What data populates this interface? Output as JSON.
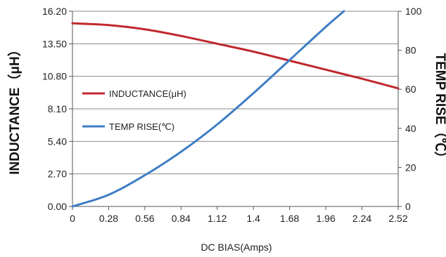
{
  "chart_data": {
    "type": "line",
    "xlabel": "DC BIAS(Amps)",
    "ylabel_left": "INDUCTANCE（μH）",
    "ylabel_right": "TEMP RISE（℃）",
    "x_ticks": [
      "0",
      "0.28",
      "0.56",
      "0.84",
      "1.12",
      "1.4",
      "1.68",
      "1.96",
      "2.24",
      "2.52"
    ],
    "y_left_ticks": [
      "0.00",
      "2.70",
      "5.40",
      "8.10",
      "10.80",
      "13.50",
      "16.20"
    ],
    "y_right_ticks": [
      "0",
      "20",
      "40",
      "60",
      "80",
      "100"
    ],
    "xlim": [
      0,
      2.52
    ],
    "ylim_left": [
      0,
      16.2
    ],
    "ylim_right": [
      0,
      100
    ],
    "grid": true,
    "legend_position": "left-middle",
    "series": [
      {
        "name": "INDUCTANCE(μH)",
        "axis": "left",
        "color": "#c0282d",
        "x": [
          0,
          0.28,
          0.56,
          0.84,
          1.12,
          1.4,
          1.68,
          1.96,
          2.24,
          2.52
        ],
        "y": [
          15.2,
          15.05,
          14.7,
          14.15,
          13.5,
          12.85,
          12.1,
          11.35,
          10.6,
          9.8
        ]
      },
      {
        "name": "TEMP RISE(℃)",
        "axis": "right",
        "color": "#3e7dc4",
        "x": [
          0,
          0.28,
          0.56,
          0.84,
          1.12,
          1.4,
          1.68,
          1.96,
          2.1
        ],
        "y": [
          0,
          6,
          16,
          28,
          42,
          58,
          75,
          92,
          100
        ]
      }
    ]
  }
}
